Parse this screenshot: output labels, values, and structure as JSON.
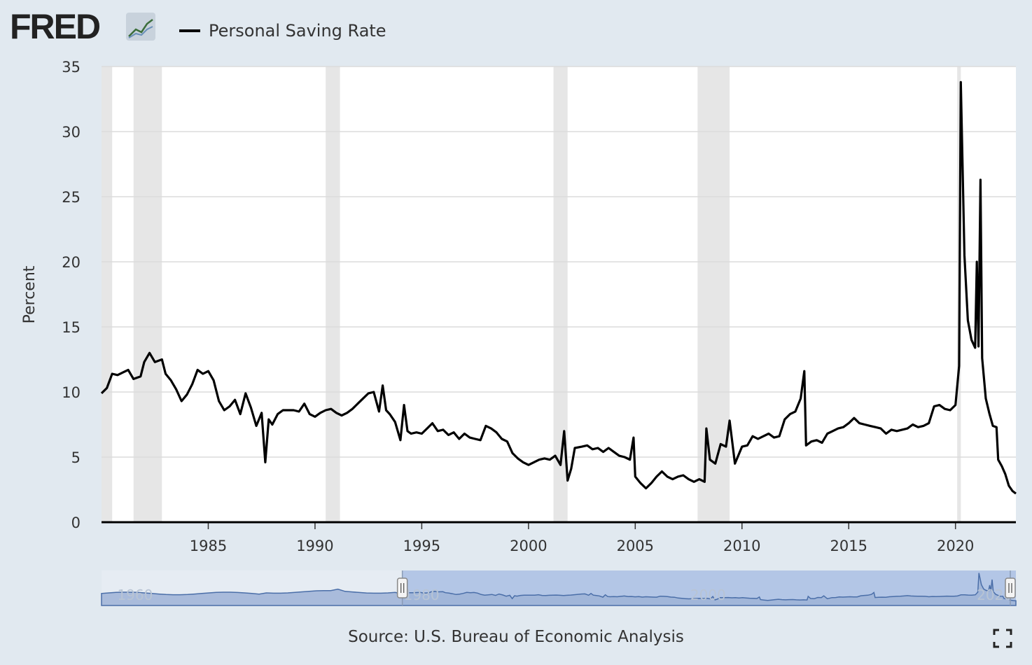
{
  "header": {
    "logo_text": "FRED",
    "legend_label": "Personal Saving Rate"
  },
  "source_text": "Source: U.S. Bureau of Economic Analysis",
  "colors": {
    "background": "#e1e9f0",
    "plot_background": "#ffffff",
    "line": "#000000",
    "recession": "#e6e6e6",
    "navigator_fill": "#9db3d6",
    "navigator_line": "#4a6ea8",
    "navigator_selection": "#b3c6e6"
  },
  "icons": {
    "logo_graph": "line-graph-icon",
    "fullscreen": "fullscreen-icon"
  },
  "chart_data": {
    "type": "line",
    "title": "",
    "xlabel": "",
    "ylabel": "Percent",
    "xlim": [
      1980.0,
      2022.83
    ],
    "ylim": [
      0,
      35
    ],
    "yticks": [
      0,
      5,
      10,
      15,
      20,
      25,
      30,
      35
    ],
    "xticks": [
      1985,
      1990,
      1995,
      2000,
      2005,
      2010,
      2015,
      2020
    ],
    "grid": true,
    "legend_position": "top-left",
    "recessions": [
      [
        1980.0,
        1980.5
      ],
      [
        1981.5,
        1982.83
      ],
      [
        1990.5,
        1991.17
      ],
      [
        2001.17,
        2001.83
      ],
      [
        2007.92,
        2009.42
      ],
      [
        2020.08,
        2020.25
      ]
    ],
    "series": [
      {
        "name": "Personal Saving Rate",
        "points": [
          [
            1980.0,
            9.9
          ],
          [
            1980.25,
            10.3
          ],
          [
            1980.5,
            11.4
          ],
          [
            1980.75,
            11.3
          ],
          [
            1981.0,
            11.5
          ],
          [
            1981.25,
            11.7
          ],
          [
            1981.5,
            11.0
          ],
          [
            1981.83,
            11.2
          ],
          [
            1982.0,
            12.3
          ],
          [
            1982.25,
            13.0
          ],
          [
            1982.5,
            12.3
          ],
          [
            1982.83,
            12.5
          ],
          [
            1983.0,
            11.4
          ],
          [
            1983.25,
            10.9
          ],
          [
            1983.5,
            10.2
          ],
          [
            1983.75,
            9.3
          ],
          [
            1984.0,
            9.8
          ],
          [
            1984.25,
            10.6
          ],
          [
            1984.5,
            11.7
          ],
          [
            1984.75,
            11.4
          ],
          [
            1985.0,
            11.6
          ],
          [
            1985.25,
            10.9
          ],
          [
            1985.5,
            9.3
          ],
          [
            1985.75,
            8.6
          ],
          [
            1986.0,
            8.9
          ],
          [
            1986.25,
            9.4
          ],
          [
            1986.5,
            8.3
          ],
          [
            1986.75,
            9.9
          ],
          [
            1987.0,
            8.8
          ],
          [
            1987.25,
            7.4
          ],
          [
            1987.5,
            8.4
          ],
          [
            1987.67,
            4.6
          ],
          [
            1987.83,
            7.9
          ],
          [
            1988.0,
            7.5
          ],
          [
            1988.25,
            8.3
          ],
          [
            1988.5,
            8.6
          ],
          [
            1988.75,
            8.6
          ],
          [
            1989.0,
            8.6
          ],
          [
            1989.25,
            8.5
          ],
          [
            1989.5,
            9.1
          ],
          [
            1989.75,
            8.3
          ],
          [
            1990.0,
            8.1
          ],
          [
            1990.25,
            8.4
          ],
          [
            1990.5,
            8.6
          ],
          [
            1990.75,
            8.7
          ],
          [
            1991.0,
            8.4
          ],
          [
            1991.25,
            8.2
          ],
          [
            1991.5,
            8.4
          ],
          [
            1991.75,
            8.7
          ],
          [
            1992.0,
            9.1
          ],
          [
            1992.25,
            9.5
          ],
          [
            1992.5,
            9.9
          ],
          [
            1992.75,
            10.0
          ],
          [
            1993.0,
            8.5
          ],
          [
            1993.17,
            10.5
          ],
          [
            1993.33,
            8.6
          ],
          [
            1993.5,
            8.3
          ],
          [
            1993.75,
            7.7
          ],
          [
            1994.0,
            6.3
          ],
          [
            1994.17,
            9.0
          ],
          [
            1994.33,
            7.0
          ],
          [
            1994.5,
            6.8
          ],
          [
            1994.75,
            6.9
          ],
          [
            1995.0,
            6.8
          ],
          [
            1995.25,
            7.2
          ],
          [
            1995.5,
            7.6
          ],
          [
            1995.75,
            7.0
          ],
          [
            1996.0,
            7.1
          ],
          [
            1996.25,
            6.7
          ],
          [
            1996.5,
            6.9
          ],
          [
            1996.75,
            6.4
          ],
          [
            1997.0,
            6.8
          ],
          [
            1997.25,
            6.5
          ],
          [
            1997.5,
            6.4
          ],
          [
            1997.75,
            6.3
          ],
          [
            1998.0,
            7.4
          ],
          [
            1998.25,
            7.2
          ],
          [
            1998.5,
            6.9
          ],
          [
            1998.75,
            6.4
          ],
          [
            1999.0,
            6.2
          ],
          [
            1999.25,
            5.3
          ],
          [
            1999.5,
            4.9
          ],
          [
            1999.75,
            4.6
          ],
          [
            2000.0,
            4.4
          ],
          [
            2000.25,
            4.6
          ],
          [
            2000.5,
            4.8
          ],
          [
            2000.75,
            4.9
          ],
          [
            2001.0,
            4.8
          ],
          [
            2001.25,
            5.1
          ],
          [
            2001.5,
            4.4
          ],
          [
            2001.67,
            7.0
          ],
          [
            2001.83,
            3.2
          ],
          [
            2002.0,
            4.1
          ],
          [
            2002.17,
            5.7
          ],
          [
            2002.5,
            5.8
          ],
          [
            2002.75,
            5.9
          ],
          [
            2003.0,
            5.6
          ],
          [
            2003.25,
            5.7
          ],
          [
            2003.5,
            5.4
          ],
          [
            2003.75,
            5.7
          ],
          [
            2004.0,
            5.4
          ],
          [
            2004.25,
            5.1
          ],
          [
            2004.5,
            5.0
          ],
          [
            2004.75,
            4.8
          ],
          [
            2004.92,
            6.5
          ],
          [
            2005.0,
            3.5
          ],
          [
            2005.25,
            3.0
          ],
          [
            2005.5,
            2.6
          ],
          [
            2005.75,
            3.0
          ],
          [
            2006.0,
            3.5
          ],
          [
            2006.25,
            3.9
          ],
          [
            2006.5,
            3.5
          ],
          [
            2006.75,
            3.3
          ],
          [
            2007.0,
            3.5
          ],
          [
            2007.25,
            3.6
          ],
          [
            2007.5,
            3.3
          ],
          [
            2007.75,
            3.1
          ],
          [
            2008.0,
            3.3
          ],
          [
            2008.25,
            3.1
          ],
          [
            2008.33,
            7.2
          ],
          [
            2008.5,
            4.8
          ],
          [
            2008.75,
            4.5
          ],
          [
            2009.0,
            6.0
          ],
          [
            2009.25,
            5.8
          ],
          [
            2009.42,
            7.8
          ],
          [
            2009.67,
            4.5
          ],
          [
            2010.0,
            5.8
          ],
          [
            2010.25,
            5.9
          ],
          [
            2010.5,
            6.6
          ],
          [
            2010.75,
            6.4
          ],
          [
            2011.0,
            6.6
          ],
          [
            2011.25,
            6.8
          ],
          [
            2011.5,
            6.5
          ],
          [
            2011.75,
            6.6
          ],
          [
            2012.0,
            7.9
          ],
          [
            2012.25,
            8.3
          ],
          [
            2012.5,
            8.5
          ],
          [
            2012.75,
            9.5
          ],
          [
            2012.92,
            11.6
          ],
          [
            2013.0,
            5.9
          ],
          [
            2013.25,
            6.2
          ],
          [
            2013.5,
            6.3
          ],
          [
            2013.75,
            6.1
          ],
          [
            2014.0,
            6.8
          ],
          [
            2014.25,
            7.0
          ],
          [
            2014.5,
            7.2
          ],
          [
            2014.75,
            7.3
          ],
          [
            2015.0,
            7.6
          ],
          [
            2015.25,
            8.0
          ],
          [
            2015.5,
            7.6
          ],
          [
            2015.75,
            7.5
          ],
          [
            2016.0,
            7.4
          ],
          [
            2016.25,
            7.3
          ],
          [
            2016.5,
            7.2
          ],
          [
            2016.75,
            6.8
          ],
          [
            2017.0,
            7.1
          ],
          [
            2017.25,
            7.0
          ],
          [
            2017.5,
            7.1
          ],
          [
            2017.75,
            7.2
          ],
          [
            2018.0,
            7.5
          ],
          [
            2018.25,
            7.3
          ],
          [
            2018.5,
            7.4
          ],
          [
            2018.75,
            7.6
          ],
          [
            2019.0,
            8.9
          ],
          [
            2019.25,
            9.0
          ],
          [
            2019.5,
            8.7
          ],
          [
            2019.75,
            8.6
          ],
          [
            2020.0,
            9.0
          ],
          [
            2020.17,
            12.0
          ],
          [
            2020.25,
            33.8
          ],
          [
            2020.42,
            20.5
          ],
          [
            2020.58,
            15.5
          ],
          [
            2020.75,
            14.0
          ],
          [
            2020.92,
            13.4
          ],
          [
            2021.0,
            20.0
          ],
          [
            2021.08,
            13.5
          ],
          [
            2021.17,
            26.3
          ],
          [
            2021.25,
            12.6
          ],
          [
            2021.42,
            9.5
          ],
          [
            2021.58,
            8.4
          ],
          [
            2021.75,
            7.4
          ],
          [
            2021.92,
            7.3
          ],
          [
            2022.0,
            4.8
          ],
          [
            2022.17,
            4.3
          ],
          [
            2022.33,
            3.7
          ],
          [
            2022.5,
            2.8
          ],
          [
            2022.67,
            2.4
          ],
          [
            2022.83,
            2.2
          ]
        ]
      }
    ],
    "navigator": {
      "range": [
        1959.0,
        2022.83
      ],
      "selected": [
        1980.0,
        2022.83
      ],
      "tick_labels": [
        "1960",
        "1980",
        "2000",
        "2020"
      ]
    }
  }
}
